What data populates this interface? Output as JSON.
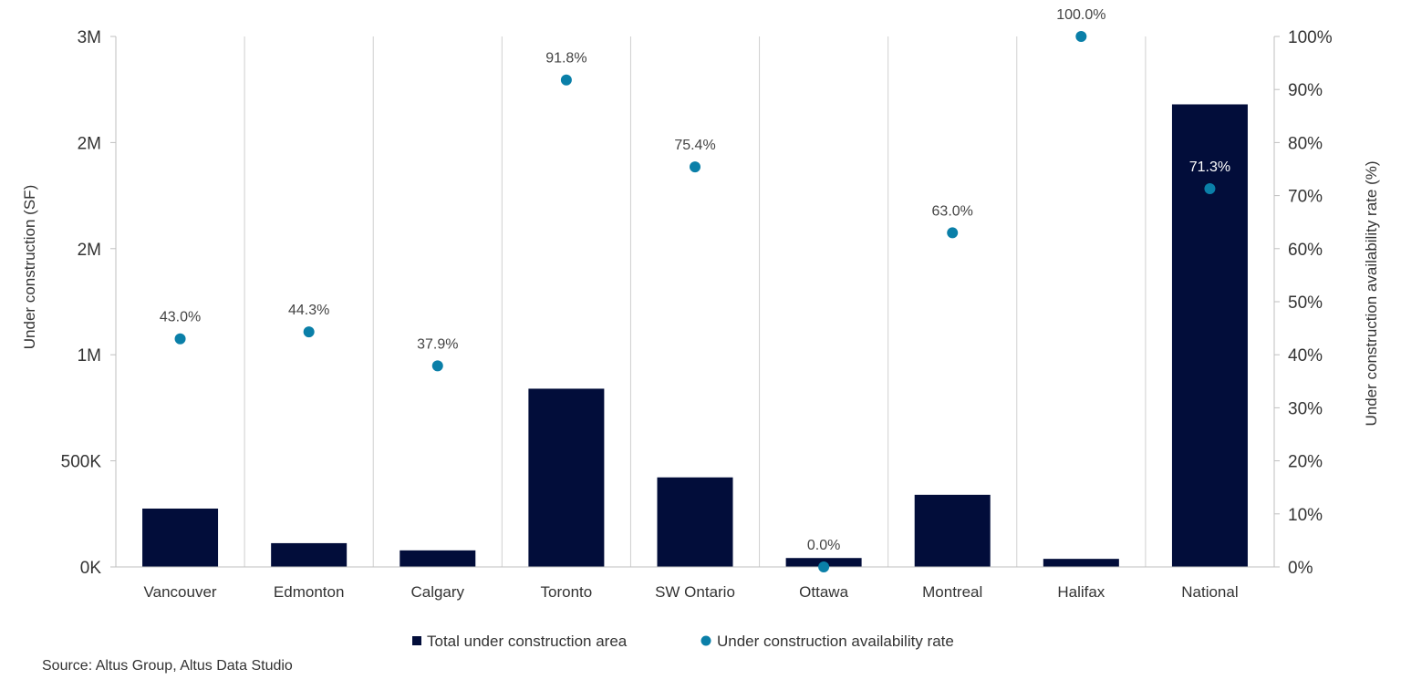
{
  "chart_data": {
    "type": "bar",
    "categories": [
      "Vancouver",
      "Edmonton",
      "Calgary",
      "Toronto",
      "SW Ontario",
      "Ottawa",
      "Montreal",
      "Halifax",
      "National"
    ],
    "series": [
      {
        "name": "Total under construction area",
        "type": "bar",
        "axis": "left",
        "color": "#020d3a",
        "values": [
          275000,
          112000,
          78000,
          840000,
          422000,
          42000,
          340000,
          38000,
          2180000
        ]
      },
      {
        "name": "Under construction availability rate",
        "type": "scatter",
        "axis": "right",
        "color": "#0a7fa8",
        "values": [
          43.0,
          44.3,
          37.9,
          91.8,
          75.4,
          0.0,
          63.0,
          100.0,
          71.3
        ],
        "labels": [
          "43.0%",
          "44.3%",
          "37.9%",
          "91.8%",
          "75.4%",
          "0.0%",
          "63.0%",
          "100.0%",
          "71.3%"
        ]
      }
    ],
    "y_left": {
      "label": "Under construction (SF)",
      "range": [
        0,
        2500000
      ],
      "ticks": [
        0,
        500000,
        1000000,
        1500000,
        2000000,
        2500000
      ],
      "tick_labels": [
        "0K",
        "500K",
        "1M",
        "2M",
        "2M",
        "3M"
      ]
    },
    "y_right": {
      "label": "Under construction availability rate (%)",
      "range": [
        0,
        100
      ],
      "ticks": [
        0,
        10,
        20,
        30,
        40,
        50,
        60,
        70,
        80,
        90,
        100
      ],
      "tick_labels": [
        "0%",
        "10%",
        "20%",
        "30%",
        "40%",
        "50%",
        "60%",
        "70%",
        "80%",
        "90%",
        "100%"
      ]
    },
    "grid": "vertical-category-separators",
    "legend_position": "bottom",
    "source": "Source: Altus Group, Altus Data Studio"
  }
}
